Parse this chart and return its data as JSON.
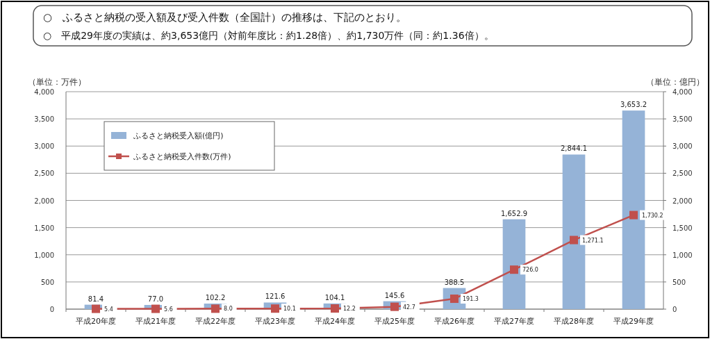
{
  "chart_data": {
    "type": "bar",
    "title": "○　ふるさと納税の受入額及び受入件数（全国計）の推移は、下記のとおり。",
    "subtitle": "○　平成29年度の実績は、約3,653億円（対前年度比：約1.28倍）、約1,730万件（同：約1.36倍）。",
    "ylabel": "（単位：万件）",
    "y2label": "（単位：億円）",
    "categories": [
      "平成20年度",
      "平成21年度",
      "平成22年度",
      "平成23年度",
      "平成24年度",
      "平成25年度",
      "平成26年度",
      "平成27年度",
      "平成28年度",
      "平成29年度"
    ],
    "series": [
      {
        "name": "ふるさと納税受入額(億円)",
        "type": "bar",
        "axis": "y2",
        "color": "#95b3d7",
        "values": [
          81.4,
          77.0,
          102.2,
          121.6,
          104.1,
          145.6,
          388.5,
          1652.9,
          2844.1,
          3653.2
        ],
        "value_labels": [
          "81.4",
          "77.0",
          "102.2",
          "121.6",
          "104.1",
          "145.6",
          "388.5",
          "1,652.9",
          "2,844.1",
          "3,653.2"
        ]
      },
      {
        "name": "ふるさと納税受入件数(万件)",
        "type": "line",
        "axis": "y",
        "color": "#c0504d",
        "marker": "square",
        "values": [
          5.4,
          5.6,
          8.0,
          10.1,
          12.2,
          42.7,
          191.3,
          726.0,
          1271.1,
          1730.2
        ],
        "value_labels": [
          "5.4",
          "5.6",
          "8.0",
          "10.1",
          "12.2",
          "42.7",
          "191.3",
          "726.0",
          "1,271.1",
          "1,730.2"
        ]
      }
    ],
    "ylim": [
      0,
      4000
    ],
    "yticks": [
      {
        "value": 0,
        "label": "0"
      },
      {
        "value": 500,
        "label": "500"
      },
      {
        "value": 1000,
        "label": "1,000"
      },
      {
        "value": 1500,
        "label": "1,500"
      },
      {
        "value": 2000,
        "label": "2,000"
      },
      {
        "value": 2500,
        "label": "2,500"
      },
      {
        "value": 3000,
        "label": "3,000"
      },
      {
        "value": 3500,
        "label": "3,500"
      },
      {
        "value": 4000,
        "label": "4,000"
      }
    ],
    "y2lim": [
      0,
      4000
    ],
    "y2ticks": [
      {
        "value": 0,
        "label": "0"
      },
      {
        "value": 500,
        "label": "500"
      },
      {
        "value": 1000,
        "label": "1,000"
      },
      {
        "value": 1500,
        "label": "1,500"
      },
      {
        "value": 2000,
        "label": "2,000"
      },
      {
        "value": 2500,
        "label": "2,500"
      },
      {
        "value": 3000,
        "label": "3,000"
      },
      {
        "value": 3500,
        "label": "3,500"
      },
      {
        "value": 4000,
        "label": "4,000"
      }
    ],
    "grid": "y",
    "legend": "top left"
  }
}
